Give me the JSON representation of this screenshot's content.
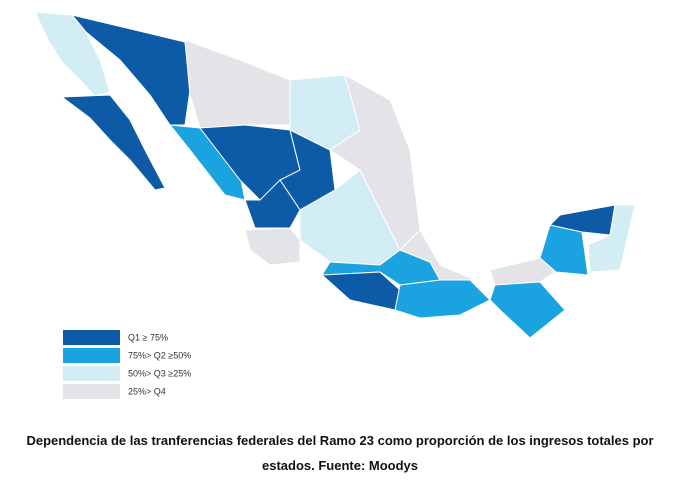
{
  "legend": {
    "items": [
      {
        "label": "Q1 ≥ 75%",
        "color": "#0d5aa7"
      },
      {
        "label": "75%> Q2 ≥50%",
        "color": "#1aa3e0"
      },
      {
        "label": "50%> Q3 ≥25%",
        "color": "#d3edf5"
      },
      {
        "label": "25%> Q4",
        "color": "#e4e4e8"
      }
    ]
  },
  "caption": "Dependencia de las tranferencias federales del Ramo 23 como proporción de los ingresos totales por estados. Fuente: Moodys"
}
